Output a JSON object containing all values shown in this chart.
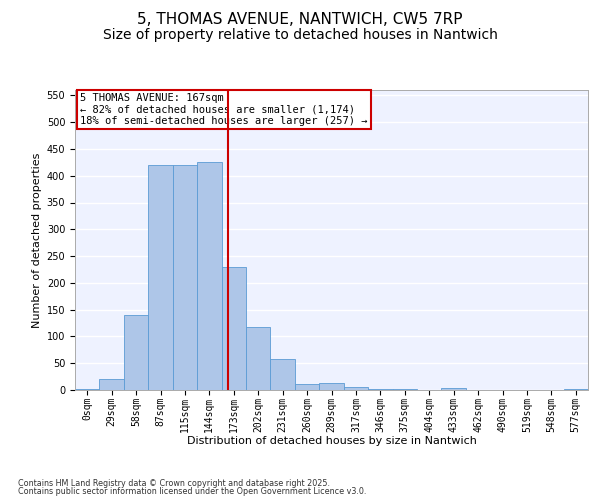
{
  "title1": "5, THOMAS AVENUE, NANTWICH, CW5 7RP",
  "title2": "Size of property relative to detached houses in Nantwich",
  "xlabel": "Distribution of detached houses by size in Nantwich",
  "ylabel": "Number of detached properties",
  "bin_labels": [
    "0sqm",
    "29sqm",
    "58sqm",
    "87sqm",
    "115sqm",
    "144sqm",
    "173sqm",
    "202sqm",
    "231sqm",
    "260sqm",
    "289sqm",
    "317sqm",
    "346sqm",
    "375sqm",
    "404sqm",
    "433sqm",
    "462sqm",
    "490sqm",
    "519sqm",
    "548sqm",
    "577sqm"
  ],
  "bar_values": [
    2,
    20,
    140,
    420,
    420,
    425,
    230,
    117,
    58,
    12,
    13,
    6,
    2,
    1,
    0,
    4,
    0,
    0,
    0,
    0,
    1
  ],
  "bar_color": "#aec6e8",
  "bar_edge_color": "#5b9bd5",
  "bar_width": 1.0,
  "vline_color": "#cc0000",
  "annotation_text": "5 THOMAS AVENUE: 167sqm\n← 82% of detached houses are smaller (1,174)\n18% of semi-detached houses are larger (257) →",
  "annotation_box_color": "#cc0000",
  "ylim": [
    0,
    560
  ],
  "yticks": [
    0,
    50,
    100,
    150,
    200,
    250,
    300,
    350,
    400,
    450,
    500,
    550
  ],
  "background_color": "#eef2ff",
  "grid_color": "#ffffff",
  "footnote1": "Contains HM Land Registry data © Crown copyright and database right 2025.",
  "footnote2": "Contains public sector information licensed under the Open Government Licence v3.0.",
  "title_fontsize": 11,
  "subtitle_fontsize": 10,
  "label_fontsize": 8,
  "tick_fontsize": 7,
  "annot_fontsize": 7.5
}
